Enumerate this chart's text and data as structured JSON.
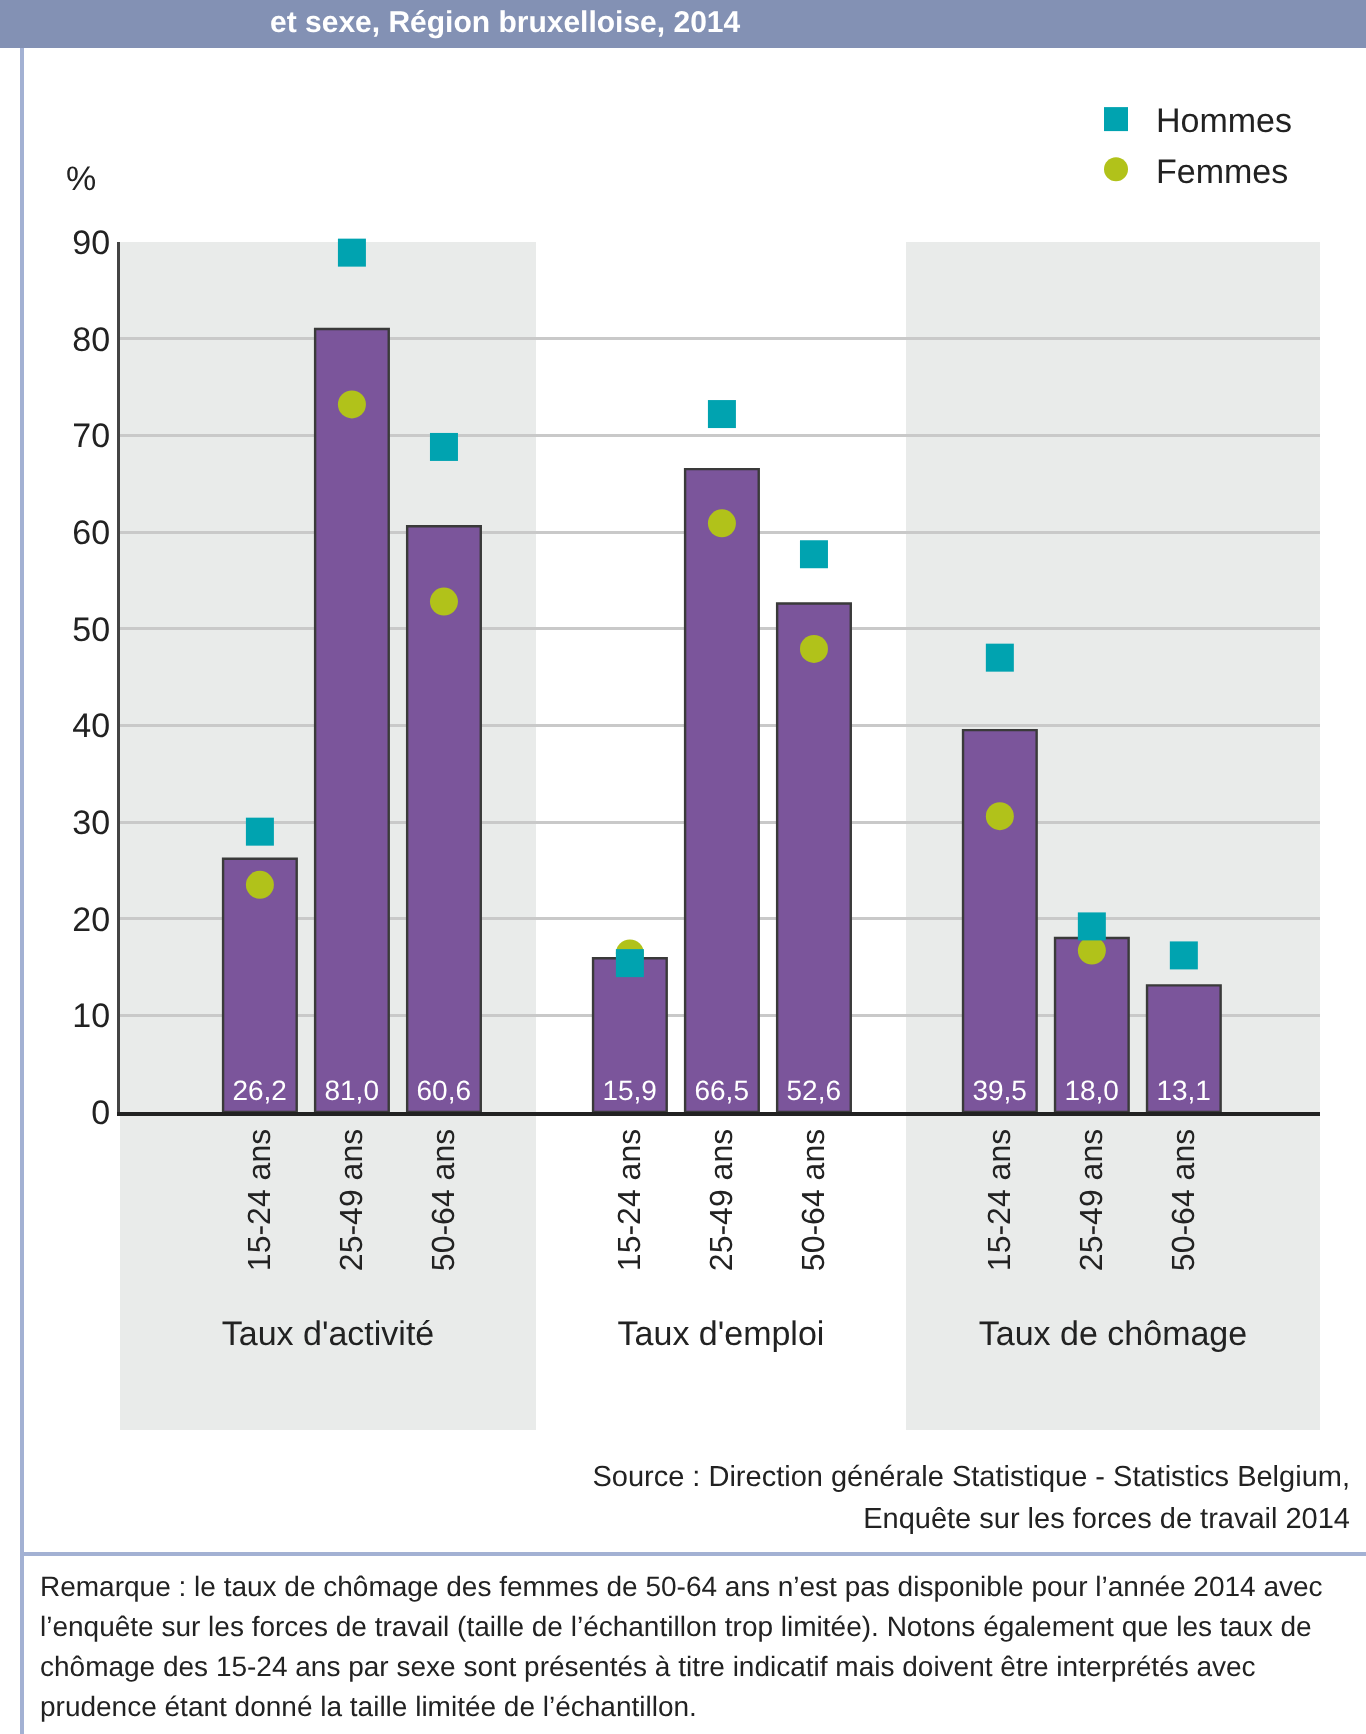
{
  "chart_data": [
    {
      "type": "bar",
      "title": "et sexe, Région bruxelloise, 2014",
      "ylabel": "%",
      "xlabel": "Taux d'activité",
      "categories": [
        "15-24 ans",
        "25-49 ans",
        "50-64 ans"
      ],
      "series": [
        {
          "color": "#7b559b",
          "values": [
            26.2,
            81.0,
            60.6
          ],
          "value_labels": [
            "26,2",
            "81,0",
            "60,6"
          ]
        },
        {
          "type": "scatter",
          "color": "#00a3b0",
          "marker": "square",
          "x": [
            "15-24 ans",
            "25-49 ans",
            "50-64 ans"
          ],
          "values": [
            29.0,
            88.9,
            68.8
          ]
        },
        {
          "type": "scatter",
          "color": "#b1c21a",
          "marker": "circle",
          "x": [
            "15-24 ans",
            "25-49 ans",
            "50-64 ans"
          ],
          "values": [
            23.5,
            73.2,
            52.8
          ]
        }
      ],
      "ylim": [
        0,
        90
      ],
      "yticks": [
        0,
        10,
        20,
        30,
        40,
        50,
        60,
        70,
        80,
        90
      ],
      "grid": "y"
    },
    {
      "type": "bar",
      "xlabel": "Taux d'emploi",
      "categories": [
        "15-24 ans",
        "25-49 ans",
        "50-64 ans"
      ],
      "series": [
        {
          "color": "#7b559b",
          "values": [
            15.9,
            66.5,
            52.6
          ],
          "value_labels": [
            "15,9",
            "66,5",
            "52,6"
          ]
        },
        {
          "type": "scatter",
          "color": "#00a3b0",
          "marker": "square",
          "x": [
            "15-24 ans",
            "25-49 ans",
            "50-64 ans"
          ],
          "values": [
            15.4,
            72.2,
            57.7
          ]
        },
        {
          "type": "scatter",
          "color": "#b1c21a",
          "marker": "circle",
          "x": [
            "15-24 ans",
            "25-49 ans",
            "50-64 ans"
          ],
          "values": [
            16.4,
            60.9,
            47.9
          ]
        }
      ],
      "ylim": [
        0,
        90
      ],
      "yticks": [
        0,
        10,
        20,
        30,
        40,
        50,
        60,
        70,
        80,
        90
      ],
      "grid": "y",
      "tick_labels": "x"
    },
    {
      "type": "bar",
      "xlabel": "Taux de chômage",
      "categories": [
        "15-24 ans",
        "25-49 ans",
        "50-64 ans"
      ],
      "series": [
        {
          "color": "#7b559b",
          "values": [
            39.5,
            18.0,
            13.1
          ],
          "value_labels": [
            "39,5",
            "18,0",
            "13,1"
          ]
        },
        {
          "type": "scatter",
          "name": "Hommes",
          "color": "#00a3b0",
          "marker": "square",
          "x": [
            "15-24 ans",
            "25-49 ans",
            "50-64 ans"
          ],
          "values": [
            47.0,
            19.2,
            16.2
          ]
        },
        {
          "type": "scatter",
          "name": "Femmes",
          "color": "#b1c21a",
          "marker": "circle",
          "x": [
            "15-24 ans",
            "25-49 ans",
            "50-64 ans"
          ],
          "values": [
            30.6,
            16.7,
            null
          ]
        }
      ],
      "ylim": [
        0,
        90
      ],
      "yticks": [
        0,
        10,
        20,
        30,
        40,
        50,
        60,
        70,
        80,
        90
      ],
      "grid": "y",
      "tick_labels": "x",
      "legend": "top right",
      "annotations": [
        "Source : Direction générale Statistique - Statistics Belgium,\nEnquête sur les forces de travail 2014",
        "Remarque : le taux de chômage des femmes de 50-64 ans n’est pas disponible pour l’année 2014 avec l’enquête sur les forces de travail (taille de l’échantillon trop limitée). Notons également que les taux de chômage des 15-24 ans par sexe sont présentés à titre indicatif mais doivent être interprétés avec prudence étant donné la taille limitée de l’échantillon."
      ]
    }
  ]
}
